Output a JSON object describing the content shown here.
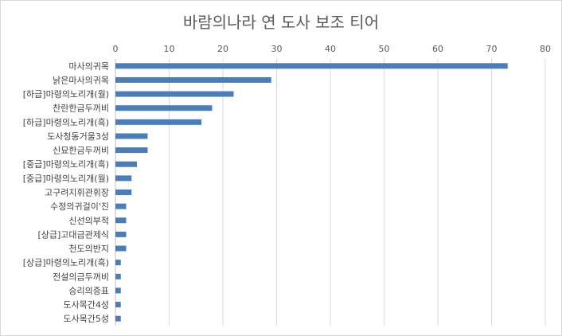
{
  "chart_data": {
    "type": "bar",
    "orientation": "horizontal",
    "title": "바람의나라 연 도사 보조 티어",
    "xlabel": "",
    "ylabel": "",
    "xlim": [
      0,
      80
    ],
    "x_ticks": [
      0,
      10,
      20,
      30,
      40,
      50,
      60,
      70,
      80
    ],
    "x_axis_position": "top",
    "grid": true,
    "legend": "none",
    "bar_color": "#4a7ebb",
    "categories": [
      "마사의귀목",
      "낡은마사의귀목",
      "[하급]마령의노리개(월)",
      "찬란한금두꺼비",
      "[하급]마령의노리개(흑)",
      "도사청동거울3성",
      "신묘한금두꺼비",
      "[중급]마령의노리개(흑)",
      "[중급]마령의노리개(월)",
      "고구려지휘관휘장",
      "수정의귀걸이'진",
      "신선의부적",
      "[상급]고대금관제식",
      "천도의반지",
      "[상급]마령의노리개(흑)",
      "전설의금두꺼비",
      "승리의증표",
      "도사목간4성",
      "도사목간5성"
    ],
    "values": [
      73,
      29,
      22,
      18,
      16,
      6,
      6,
      4,
      3,
      3,
      2,
      2,
      2,
      2,
      1,
      1,
      1,
      1,
      1
    ]
  }
}
